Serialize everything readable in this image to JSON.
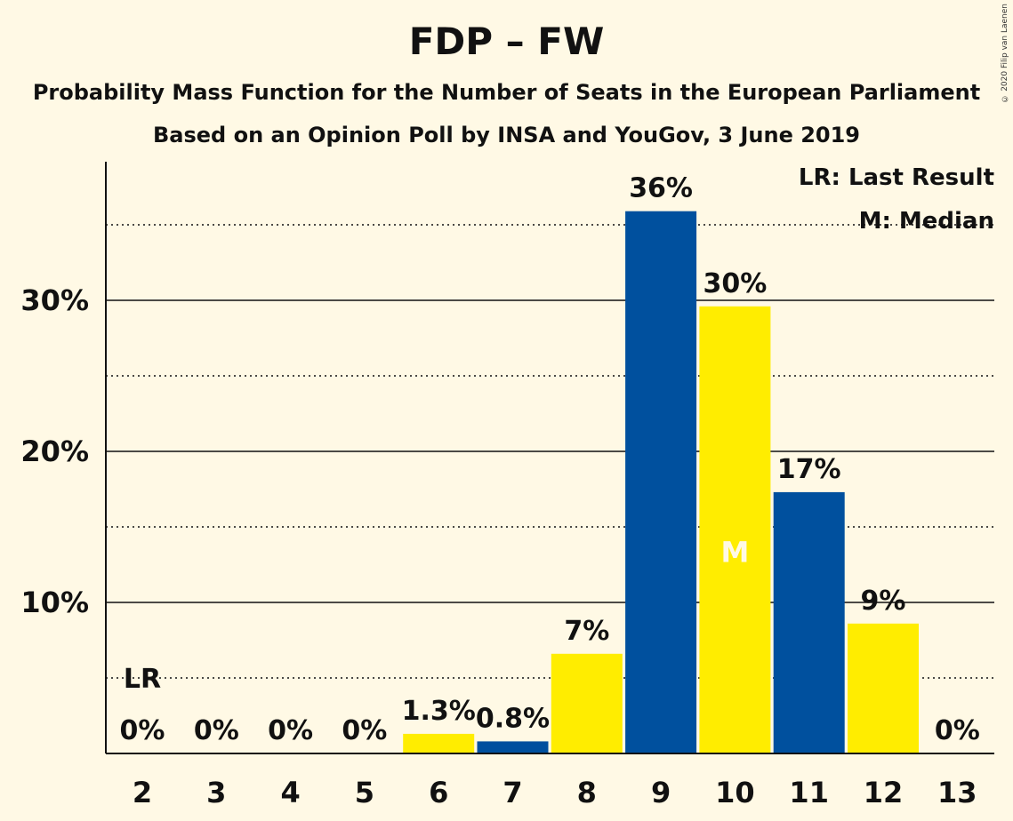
{
  "header": {
    "title": "FDP – FW",
    "subtitle1": "Probability Mass Function for the Number of Seats in the European Parliament",
    "subtitle2": "Based on an Opinion Poll by INSA and YouGov, 3 June 2019",
    "copyright": "© 2020 Filip van Laenen"
  },
  "legend": {
    "lr": "LR: Last Result",
    "m": "M: Median"
  },
  "colors": {
    "background": "#FFF9E5",
    "blue": "#00509E",
    "yellow": "#FFED00"
  },
  "chart_data": {
    "type": "bar",
    "title": "FDP – FW",
    "categories": [
      "2",
      "3",
      "4",
      "5",
      "6",
      "7",
      "8",
      "9",
      "10",
      "11",
      "12",
      "13"
    ],
    "values": [
      0,
      0,
      0,
      0,
      1.3,
      0.8,
      6.6,
      35.9,
      29.6,
      17.3,
      8.6,
      0
    ],
    "labels": [
      "0%",
      "0%",
      "0%",
      "0%",
      "1.3%",
      "0.8%",
      "7%",
      "36%",
      "30%",
      "17%",
      "9%",
      "0%"
    ],
    "bar_colors": [
      "yellow",
      "blue",
      "yellow",
      "blue",
      "yellow",
      "blue",
      "yellow",
      "blue",
      "yellow",
      "blue",
      "yellow",
      "blue"
    ],
    "ylim": [
      0,
      39
    ],
    "yticks": [
      10,
      20,
      30
    ],
    "ytick_labels": [
      "10%",
      "20%",
      "30%"
    ],
    "minor_gridlines": [
      5,
      15,
      25,
      35
    ],
    "last_result": {
      "category": "2",
      "label": "LR"
    },
    "median": {
      "category": "10",
      "label": "M"
    },
    "legend_position": "top-right",
    "grid": true
  }
}
